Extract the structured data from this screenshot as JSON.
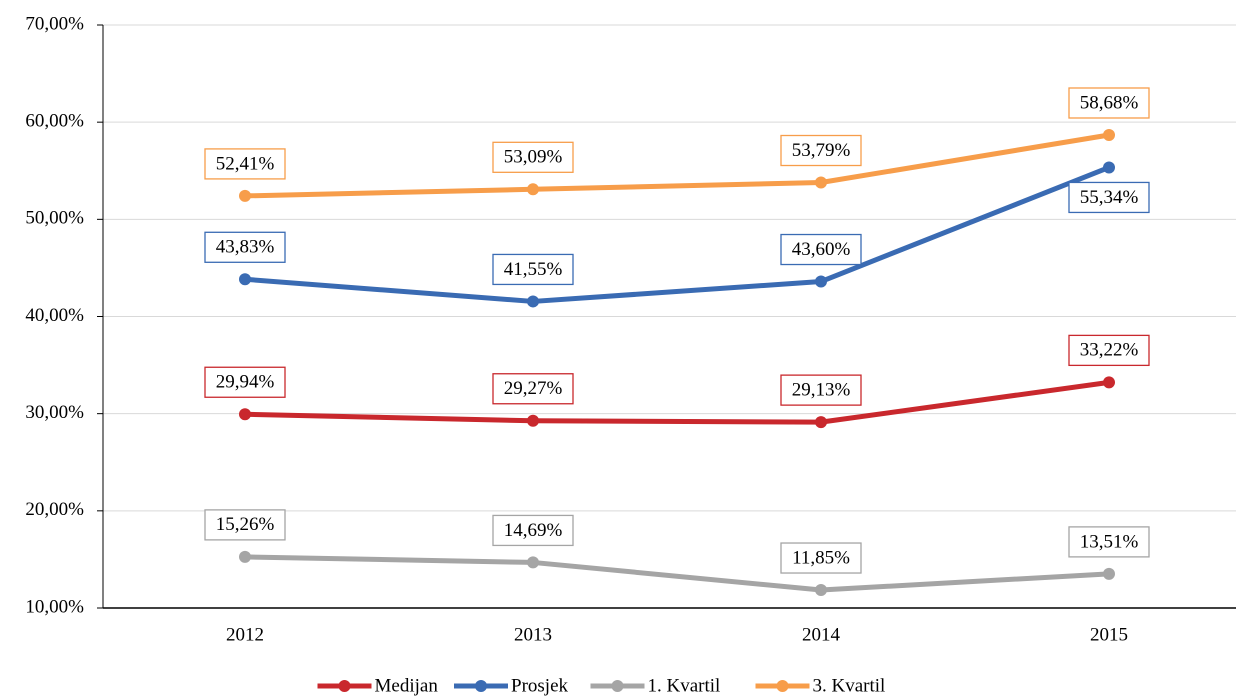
{
  "chart_data": {
    "type": "line",
    "categories": [
      "2012",
      "2013",
      "2014",
      "2015"
    ],
    "series": [
      {
        "name": "Medijan",
        "color": "#c9282d",
        "values": [
          29.94,
          29.27,
          29.13,
          33.22
        ],
        "value_labels": [
          "29,94%",
          "29,27%",
          "29,13%",
          "33,22%"
        ]
      },
      {
        "name": "Prosjek",
        "color": "#3a6bb3",
        "values": [
          43.83,
          41.55,
          43.6,
          55.34
        ],
        "value_labels": [
          "43,83%",
          "41,55%",
          "43,60%",
          "55,34%"
        ]
      },
      {
        "name": "1. Kvartil",
        "color": "#a5a5a5",
        "values": [
          15.26,
          14.69,
          11.85,
          13.51
        ],
        "value_labels": [
          "15,26%",
          "14,69%",
          "11,85%",
          "13,51%"
        ]
      },
      {
        "name": "3. Kvartil",
        "color": "#f79d4a",
        "values": [
          52.41,
          53.09,
          53.79,
          58.68
        ],
        "value_labels": [
          "52,41%",
          "53,09%",
          "53,79%",
          "58,68%"
        ]
      }
    ],
    "ylim": [
      10,
      70
    ],
    "yticks": [
      {
        "value": 10,
        "label": "10,00%"
      },
      {
        "value": 20,
        "label": "20,00%"
      },
      {
        "value": 30,
        "label": "30,00%"
      },
      {
        "value": 40,
        "label": "40,00%"
      },
      {
        "value": 50,
        "label": "50,00%"
      },
      {
        "value": 60,
        "label": "60,00%"
      },
      {
        "value": 70,
        "label": "70,00%"
      }
    ],
    "grid": true
  }
}
